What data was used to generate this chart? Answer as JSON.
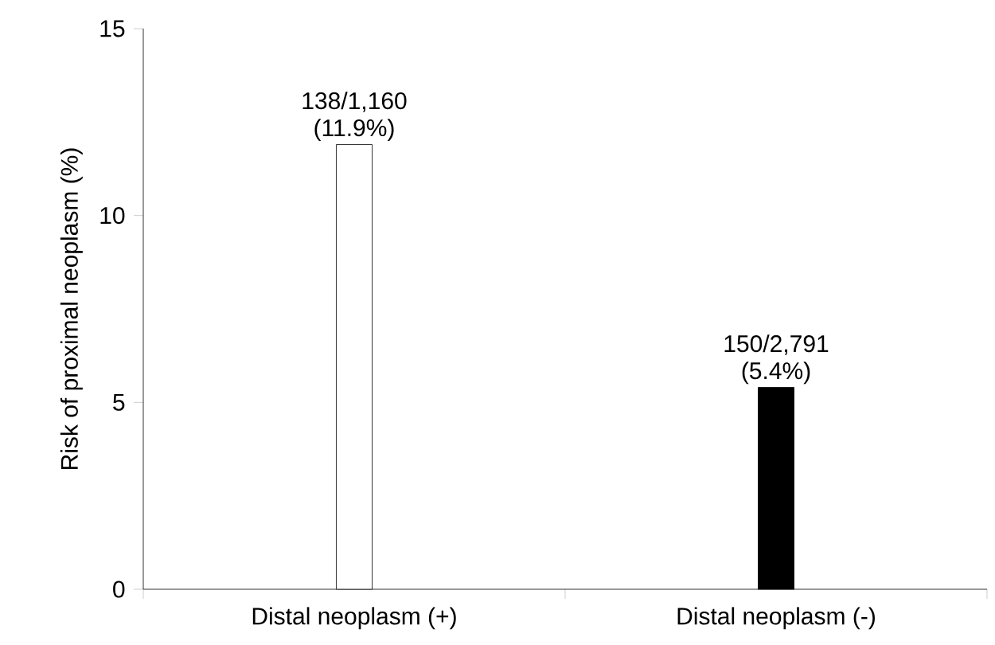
{
  "chart_data": {
    "type": "bar",
    "ylabel": "Risk of proximal neoplasm (%)",
    "categories": [
      "Distal neoplasm (+)",
      "Distal neoplasm (-)"
    ],
    "values": [
      11.9,
      5.4
    ],
    "colors": [
      "#ffffff",
      "#000000"
    ],
    "value_labels": [
      "138/1,160 (11.9%)",
      "150/2,791 (5.4%)"
    ],
    "ylim": [
      0,
      15
    ],
    "yticks": [
      0,
      5,
      10,
      15
    ],
    "grid": false
  }
}
